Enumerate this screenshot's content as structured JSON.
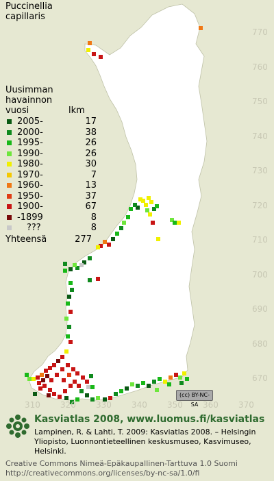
{
  "species": {
    "line1": "Puccinellia",
    "line2": "capillaris"
  },
  "legend": {
    "header": [
      "Uusimman",
      "havainnon"
    ],
    "col_year": "vuosi",
    "col_count": "lkm",
    "rows": [
      {
        "label": "2005-",
        "count": "17",
        "color": "#0a5a14"
      },
      {
        "label": "2000-",
        "count": "38",
        "color": "#0f8a1e"
      },
      {
        "label": "1995-",
        "count": "26",
        "color": "#18b818"
      },
      {
        "label": "1990-",
        "count": "26",
        "color": "#6ee63c"
      },
      {
        "label": "1980-",
        "count": "30",
        "color": "#f0f000"
      },
      {
        "label": "1970-",
        "count": "7",
        "color": "#f5c800"
      },
      {
        "label": "1960-",
        "count": "13",
        "color": "#f07814"
      },
      {
        "label": "1950-",
        "count": "37",
        "color": "#e03c14"
      },
      {
        "label": "1900-",
        "count": "67",
        "color": "#c81414"
      },
      {
        "label": "-1899",
        "count": "8",
        "color": "#780a0a"
      },
      {
        "label": "???",
        "count": "8",
        "color": "#c8c8c8"
      }
    ],
    "total_label": "Yhteensä",
    "total_count": "277"
  },
  "axes": {
    "y_ticks": [
      "770",
      "760",
      "750",
      "740",
      "730",
      "720",
      "710",
      "700",
      "690",
      "680",
      "670"
    ],
    "x_ticks": [
      "310",
      "320",
      "330",
      "340",
      "350",
      "360",
      "370"
    ]
  },
  "colors": {
    "land": "#ffffff",
    "background": "#e6e8d2",
    "grid_labels": "#c8c8b4",
    "brand": "#2f6b2f"
  },
  "cc_badge": "BY-NC-SA",
  "footer": {
    "brand": "Kasviatlas 2008, www.luomus.fi/kasviatlas",
    "citation": "Lampinen, R. & Lahti, T. 2009: Kasviatlas 2008. – Helsingin Yliopisto, Luonnontieteellinen keskusmuseo, Kasvimuseo, Helsinki.",
    "license_line1": "Creative Commons Nimeä-Epäkaupallinen-Tarttuva 1.0 Suomi",
    "license_line2": "http://creativecommons.org/licenses/by-nc-sa/1.0/fi"
  }
}
